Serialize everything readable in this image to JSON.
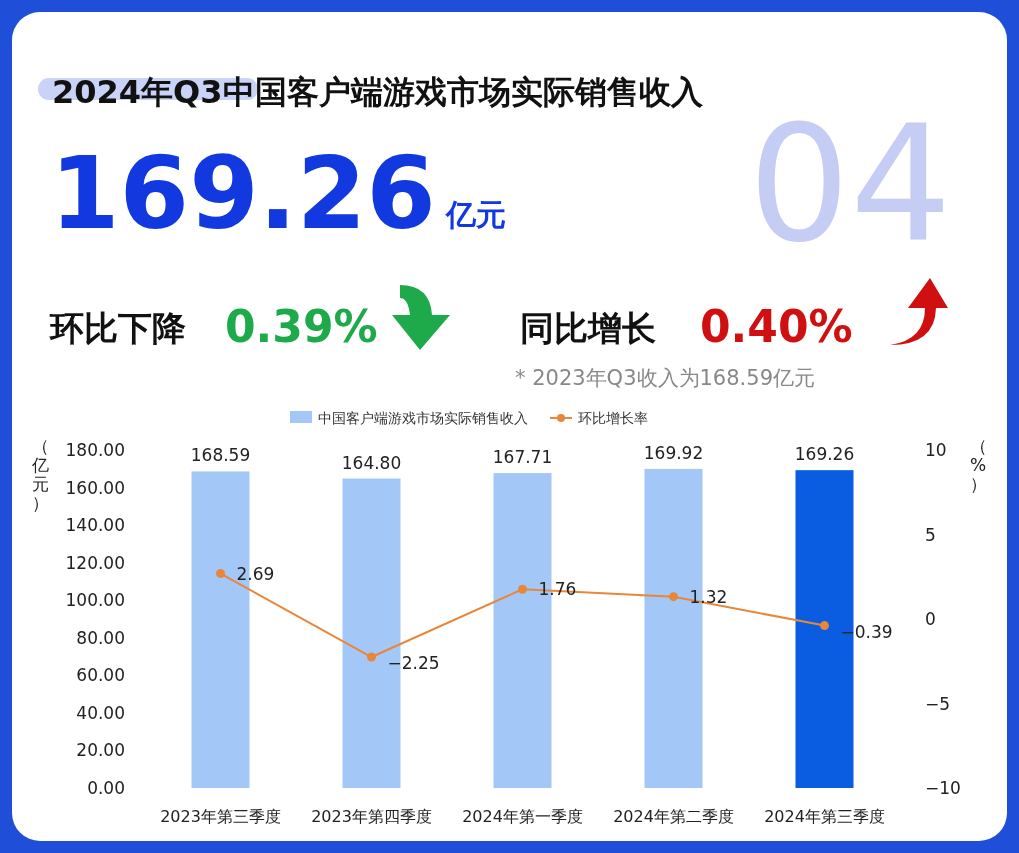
{
  "chart_data": {
    "type": "bar",
    "title": "2024年Q3中国客户端游戏市场实际销售收入",
    "annotations": [
      "04",
      "169.26",
      "亿元",
      "环比下降",
      "0.39%",
      "同比增长",
      "0.40%",
      "* 2023年Q3收入为168.59亿元"
    ],
    "categories": [
      "2023年第三季度",
      "2023年第四季度",
      "2024年第一季度",
      "2024年第二季度",
      "2024年第三季度"
    ],
    "series": [
      {
        "name": "中国客户端游戏市场实际销售收入",
        "color": "#a3c8f7",
        "colors": [
          "#a3c8f7",
          "#a3c8f7",
          "#a3c8f7",
          "#a3c8f7",
          "#0a5ce0"
        ],
        "values": [
          168.59,
          164.8,
          167.71,
          169.92,
          169.26
        ],
        "value_labels": [
          "168.59",
          "164.80",
          "167.71",
          "169.92",
          "169.26"
        ]
      },
      {
        "name": "环比增长率",
        "type": "line",
        "axis": "y2",
        "color": "#e8873a",
        "values": [
          2.69,
          -2.25,
          1.76,
          1.32,
          -0.39
        ],
        "value_labels": [
          "2.69",
          "−2.25",
          "1.76",
          "1.32",
          "−0.39"
        ]
      }
    ],
    "ylabel": "（亿元）",
    "y2label": "（%）",
    "ylim": [
      0,
      180
    ],
    "yticks": [
      {
        "value": 0,
        "label": "0.00"
      },
      {
        "value": 20,
        "label": "20.00"
      },
      {
        "value": 40,
        "label": "40.00"
      },
      {
        "value": 60,
        "label": "60.00"
      },
      {
        "value": 80,
        "label": "80.00"
      },
      {
        "value": 100,
        "label": "100.00"
      },
      {
        "value": 120,
        "label": "120.00"
      },
      {
        "value": 140,
        "label": "140.00"
      },
      {
        "value": 160,
        "label": "160.00"
      },
      {
        "value": 180,
        "label": "180.00"
      }
    ],
    "y2lim": [
      -10,
      10
    ],
    "y2ticks": [
      -10,
      -5,
      0,
      5,
      10
    ],
    "marker": "circle",
    "legend": "top"
  }
}
